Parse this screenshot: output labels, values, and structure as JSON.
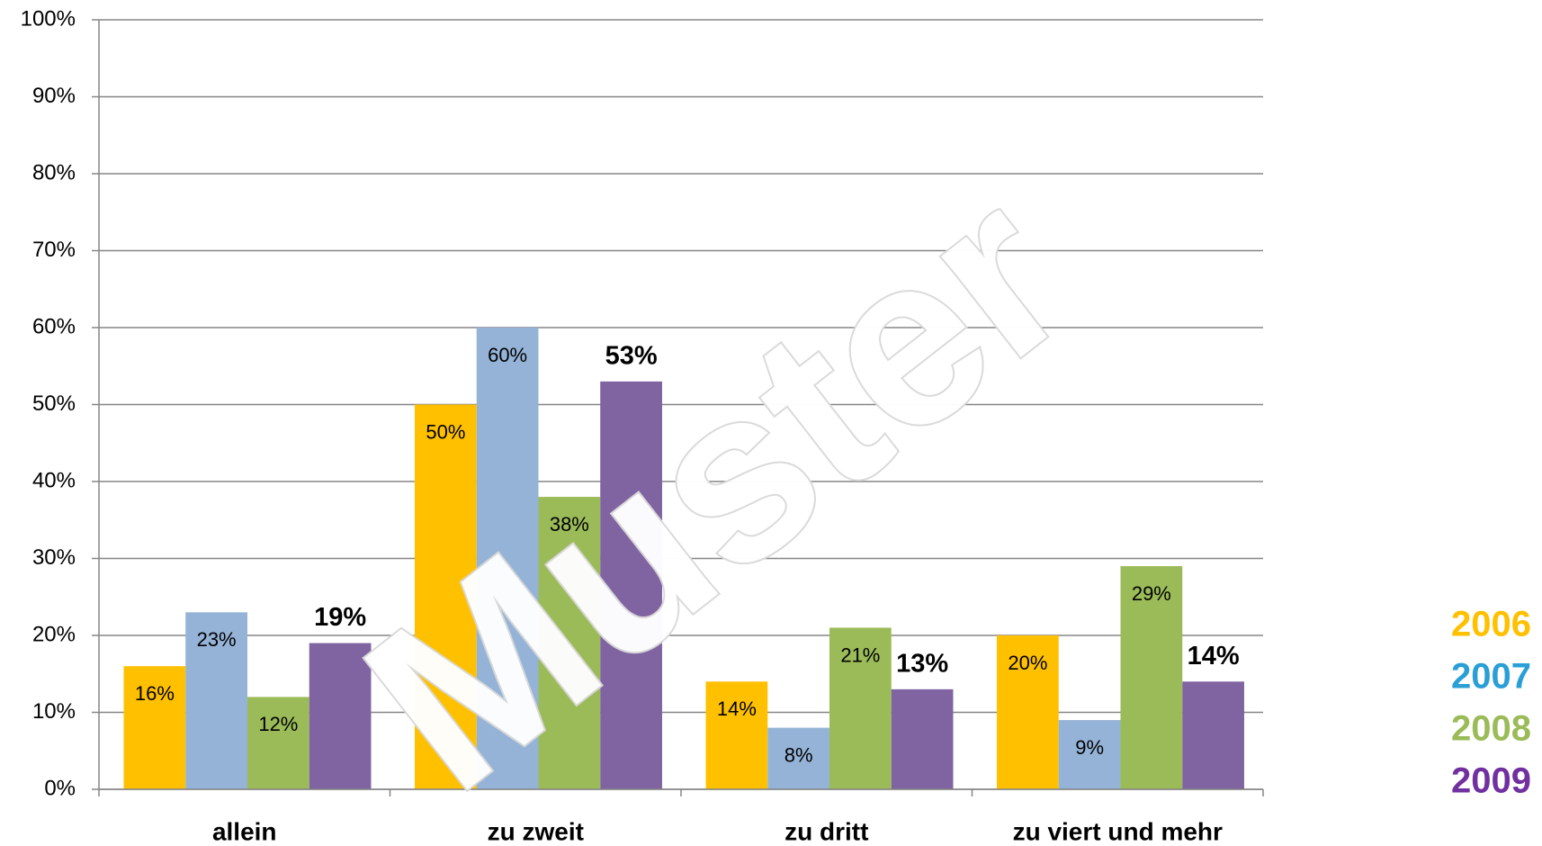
{
  "chart_data": {
    "type": "bar",
    "categories": [
      "allein",
      "zu zweit",
      "zu dritt",
      "zu viert und mehr"
    ],
    "series": [
      {
        "name": "2006",
        "color": "#ffc000",
        "legend_color": "#ffc000",
        "values": [
          16,
          50,
          14,
          20
        ],
        "value_labels": [
          "16%",
          "50%",
          "14%",
          "20%"
        ]
      },
      {
        "name": "2007",
        "color": "#95b3d7",
        "legend_color": "#2a9fd6",
        "values": [
          23,
          60,
          8,
          9
        ],
        "value_labels": [
          "23%",
          "60%",
          "8%",
          "9%"
        ]
      },
      {
        "name": "2008",
        "color": "#9bbb59",
        "legend_color": "#9bbb59",
        "values": [
          12,
          38,
          21,
          29
        ],
        "value_labels": [
          "12%",
          "38%",
          "21%",
          "29%"
        ]
      },
      {
        "name": "2009",
        "color": "#8064a2",
        "legend_color": "#7030a0",
        "values": [
          19,
          53,
          13,
          14
        ],
        "value_labels": [
          "19%",
          "53%",
          "13%",
          "14%"
        ],
        "bold_labels": true
      }
    ],
    "ylim": [
      0,
      100
    ],
    "yticks": [
      {
        "value": 0,
        "label": "0%"
      },
      {
        "value": 10,
        "label": "10%"
      },
      {
        "value": 20,
        "label": "20%"
      },
      {
        "value": 30,
        "label": "30%"
      },
      {
        "value": 40,
        "label": "40%"
      },
      {
        "value": 50,
        "label": "50%"
      },
      {
        "value": 60,
        "label": "60%"
      },
      {
        "value": 70,
        "label": "70%"
      },
      {
        "value": 80,
        "label": "80%"
      },
      {
        "value": 90,
        "label": "90%"
      },
      {
        "value": 100,
        "label": "100%"
      }
    ],
    "grid": true,
    "legend": "right",
    "watermark": "Muster"
  }
}
